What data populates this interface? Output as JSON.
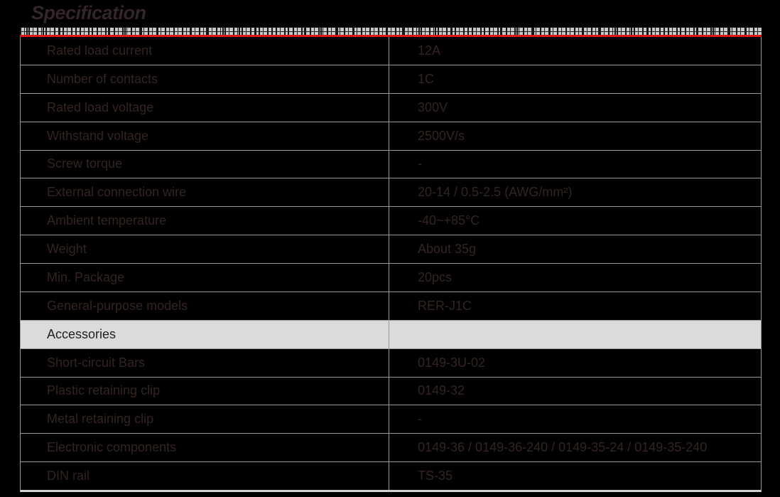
{
  "page": {
    "background": "#000000"
  },
  "colors": {
    "title_color": "#332529",
    "accent_red": "#e01319",
    "strip_bg": "#c8c9ca",
    "separator_line": "#98999a",
    "cell_text": "#342420",
    "highlight_row_bg": "#dadbdb",
    "highlight_row_text": "#262020"
  },
  "header": {
    "title": "Specification"
  },
  "table": {
    "rows": [
      {
        "label": "Rated load current",
        "value": "12A",
        "highlight": false
      },
      {
        "label": "Number of contacts",
        "value": "1C",
        "highlight": false
      },
      {
        "label": "Rated load voltage",
        "value": "300V",
        "highlight": false
      },
      {
        "label": "Withstand voltage",
        "value": "2500V/s",
        "highlight": false
      },
      {
        "label": "Screw torque",
        "value": "-",
        "highlight": false
      },
      {
        "label": "External connection wire",
        "value": "20-14 / 0.5-2.5 (AWG/mm²)",
        "highlight": false
      },
      {
        "label": "Ambient temperature",
        "value": "-40~+85°C",
        "highlight": false
      },
      {
        "label": "Weight",
        "value": "About 35g",
        "highlight": false
      },
      {
        "label": "Min. Package",
        "value": "20pcs",
        "highlight": false
      },
      {
        "label": "General-purpose models",
        "value": "RER-J1C",
        "highlight": false
      },
      {
        "label": "Accessories",
        "value": "",
        "highlight": true
      },
      {
        "label": "Short-circuit Bars",
        "value": "0149-3U-02",
        "highlight": false
      },
      {
        "label": "Plastic retaining clip",
        "value": "0149-32",
        "highlight": false
      },
      {
        "label": "Metal retaining clip",
        "value": "-",
        "highlight": false
      },
      {
        "label": "Electronic components",
        "value": "0149-36 / 0149-36-240 / 0149-35-24 / 0149-35-240",
        "highlight": false
      },
      {
        "label": "DIN rail",
        "value": "TS-35",
        "highlight": false
      }
    ]
  }
}
